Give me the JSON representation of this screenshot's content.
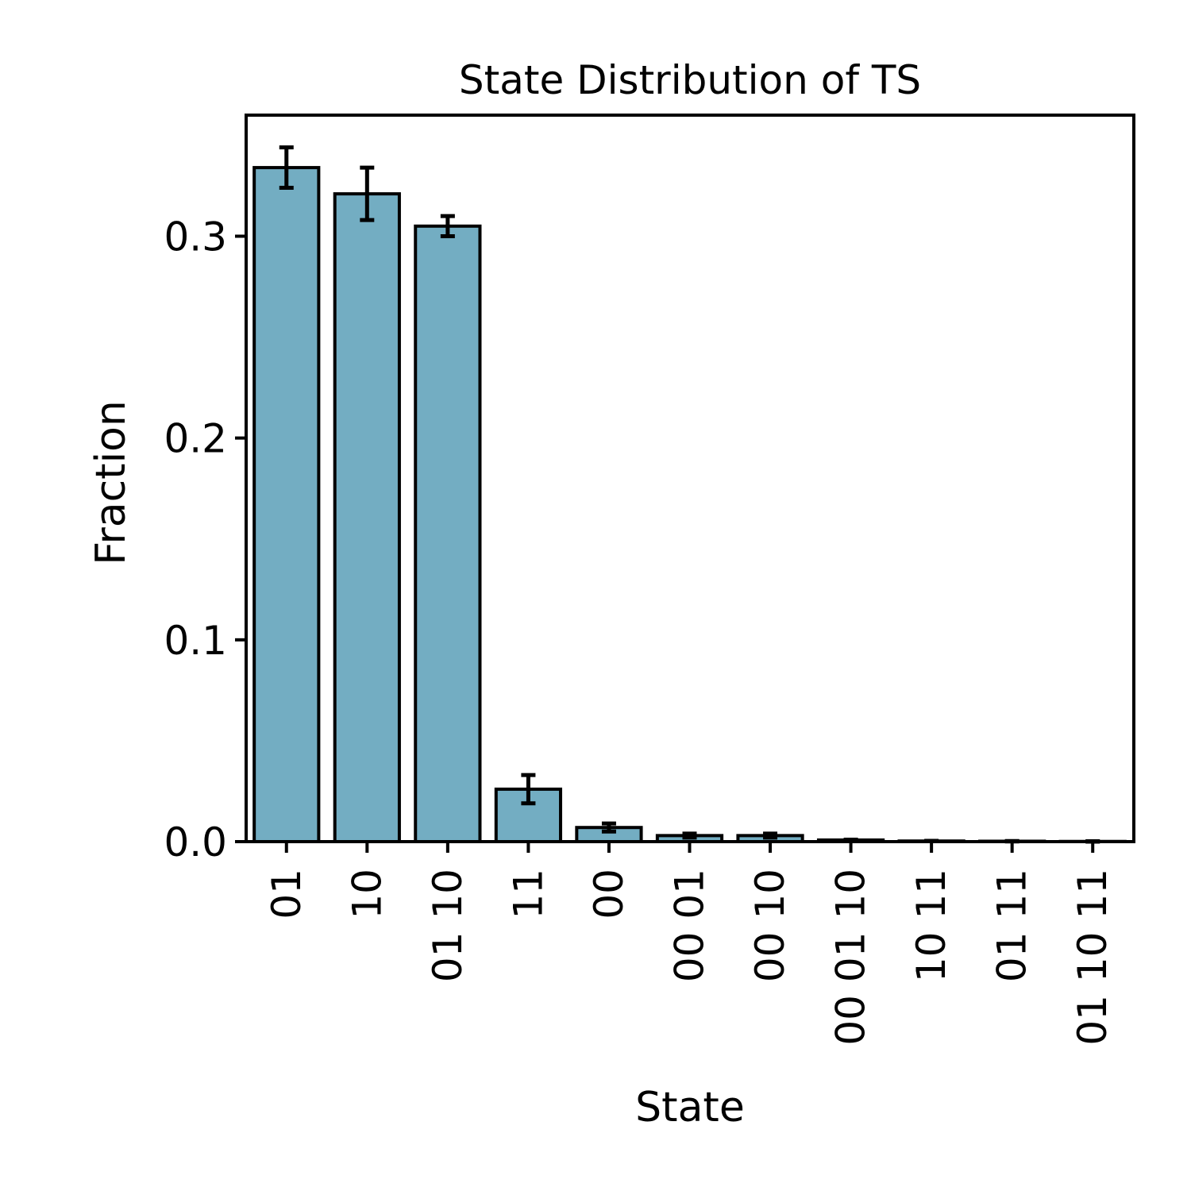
{
  "chart_data": {
    "type": "bar",
    "title": "State Distribution of TS",
    "xlabel": "State",
    "ylabel": "Fraction",
    "categories": [
      [
        "01"
      ],
      [
        "10"
      ],
      [
        "01 10"
      ],
      [
        "11"
      ],
      [
        "00"
      ],
      [
        "00 01"
      ],
      [
        "00 10"
      ],
      [
        "00 01 10"
      ],
      [
        "10 11"
      ],
      [
        "01 11"
      ],
      [
        "01 10 11"
      ]
    ],
    "values": [
      0.334,
      0.321,
      0.305,
      0.026,
      0.007,
      0.003,
      0.003,
      0.0008,
      0.0003,
      0.0002,
      0.0001
    ],
    "errors": [
      0.01,
      0.013,
      0.005,
      0.007,
      0.002,
      0.001,
      0.001,
      0.0002,
      0.0001,
      0.0001,
      0.0001
    ],
    "ylim": [
      0,
      0.36
    ],
    "yticks": [
      0.0,
      0.1,
      0.2,
      0.3
    ],
    "ytick_labels": [
      "0.0",
      "0.1",
      "0.2",
      "0.3"
    ],
    "grid": false,
    "colors": {
      "bar_fill": "#73adc2",
      "bar_edge": "#000000",
      "error_bar": "#000000"
    }
  }
}
